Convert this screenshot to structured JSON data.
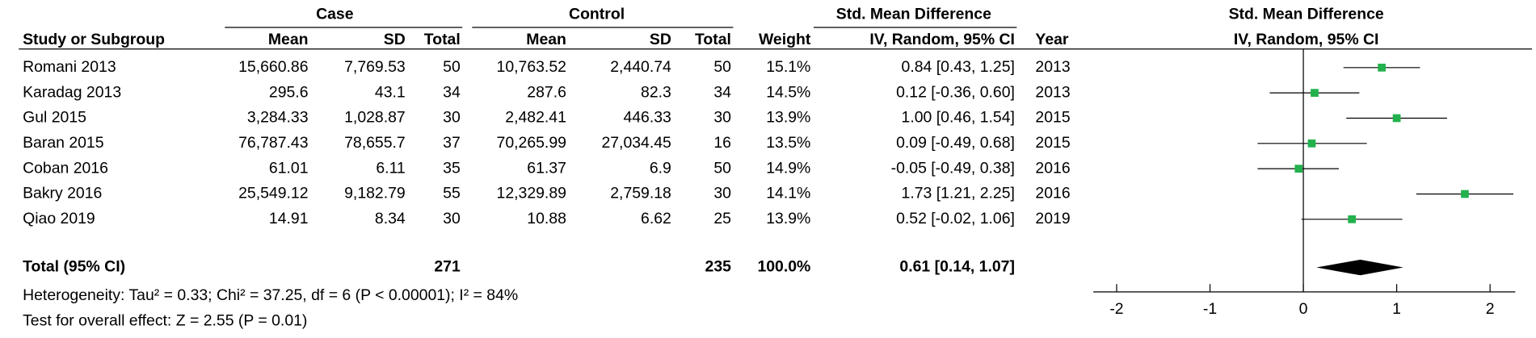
{
  "table": {
    "group_headers": [
      "Case",
      "Control",
      "Std. Mean Difference"
    ],
    "columns": [
      "Study or Subgroup",
      "Mean",
      "SD",
      "Total",
      "Mean",
      "SD",
      "Total",
      "Weight",
      "IV, Random, 95% CI",
      "Year"
    ],
    "rows": [
      {
        "study": "Romani 2013",
        "case_mean": "15,660.86",
        "case_sd": "7,769.53",
        "case_total": "50",
        "control_mean": "10,763.52",
        "control_sd": "2,440.74",
        "control_total": "50",
        "weight": "15.1%",
        "ci_label": "0.84 [0.43, 1.25]",
        "year": "2013",
        "smd": 0.84,
        "lower": 0.43,
        "upper": 1.25
      },
      {
        "study": "Karadag 2013",
        "case_mean": "295.6",
        "case_sd": "43.1",
        "case_total": "34",
        "control_mean": "287.6",
        "control_sd": "82.3",
        "control_total": "34",
        "weight": "14.5%",
        "ci_label": "0.12 [-0.36, 0.60]",
        "year": "2013",
        "smd": 0.12,
        "lower": -0.36,
        "upper": 0.6
      },
      {
        "study": "Gul 2015",
        "case_mean": "3,284.33",
        "case_sd": "1,028.87",
        "case_total": "30",
        "control_mean": "2,482.41",
        "control_sd": "446.33",
        "control_total": "30",
        "weight": "13.9%",
        "ci_label": "1.00 [0.46, 1.54]",
        "year": "2015",
        "smd": 1.0,
        "lower": 0.46,
        "upper": 1.54
      },
      {
        "study": "Baran 2015",
        "case_mean": "76,787.43",
        "case_sd": "78,655.7",
        "case_total": "37",
        "control_mean": "70,265.99",
        "control_sd": "27,034.45",
        "control_total": "16",
        "weight": "13.5%",
        "ci_label": "0.09 [-0.49, 0.68]",
        "year": "2015",
        "smd": 0.09,
        "lower": -0.49,
        "upper": 0.68
      },
      {
        "study": "Coban 2016",
        "case_mean": "61.01",
        "case_sd": "6.11",
        "case_total": "35",
        "control_mean": "61.37",
        "control_sd": "6.9",
        "control_total": "50",
        "weight": "14.9%",
        "ci_label": "-0.05 [-0.49, 0.38]",
        "year": "2016",
        "smd": -0.05,
        "lower": -0.49,
        "upper": 0.38
      },
      {
        "study": "Bakry 2016",
        "case_mean": "25,549.12",
        "case_sd": "9,182.79",
        "case_total": "55",
        "control_mean": "12,329.89",
        "control_sd": "2,759.18",
        "control_total": "30",
        "weight": "14.1%",
        "ci_label": "1.73 [1.21, 2.25]",
        "year": "2016",
        "smd": 1.73,
        "lower": 1.21,
        "upper": 2.25
      },
      {
        "study": "Qiao 2019",
        "case_mean": "14.91",
        "case_sd": "8.34",
        "case_total": "30",
        "control_mean": "10.88",
        "control_sd": "6.62",
        "control_total": "25",
        "weight": "13.9%",
        "ci_label": "0.52 [-0.02, 1.06]",
        "year": "2019",
        "smd": 0.52,
        "lower": -0.02,
        "upper": 1.06
      }
    ],
    "total": {
      "study": "Total (95% CI)",
      "case_total": "271",
      "control_total": "235",
      "weight": "100.0%",
      "ci_label": "0.61 [0.14, 1.07]",
      "smd": 0.61,
      "lower": 0.14,
      "upper": 1.07
    },
    "heterogeneity": "Heterogeneity: Tau² = 0.33; Chi² = 37.25, df = 6 (P < 0.00001); I² = 84%",
    "overall_effect": "Test for overall effect: Z = 2.55 (P = 0.01)"
  },
  "plot": {
    "title": "Std. Mean Difference",
    "subtitle": "IV, Random, 95% CI",
    "marker_color": "#22b14c",
    "xlim": [
      -2.25,
      2.27
    ],
    "xticks": [
      -2,
      -1,
      0,
      1,
      2
    ]
  }
}
